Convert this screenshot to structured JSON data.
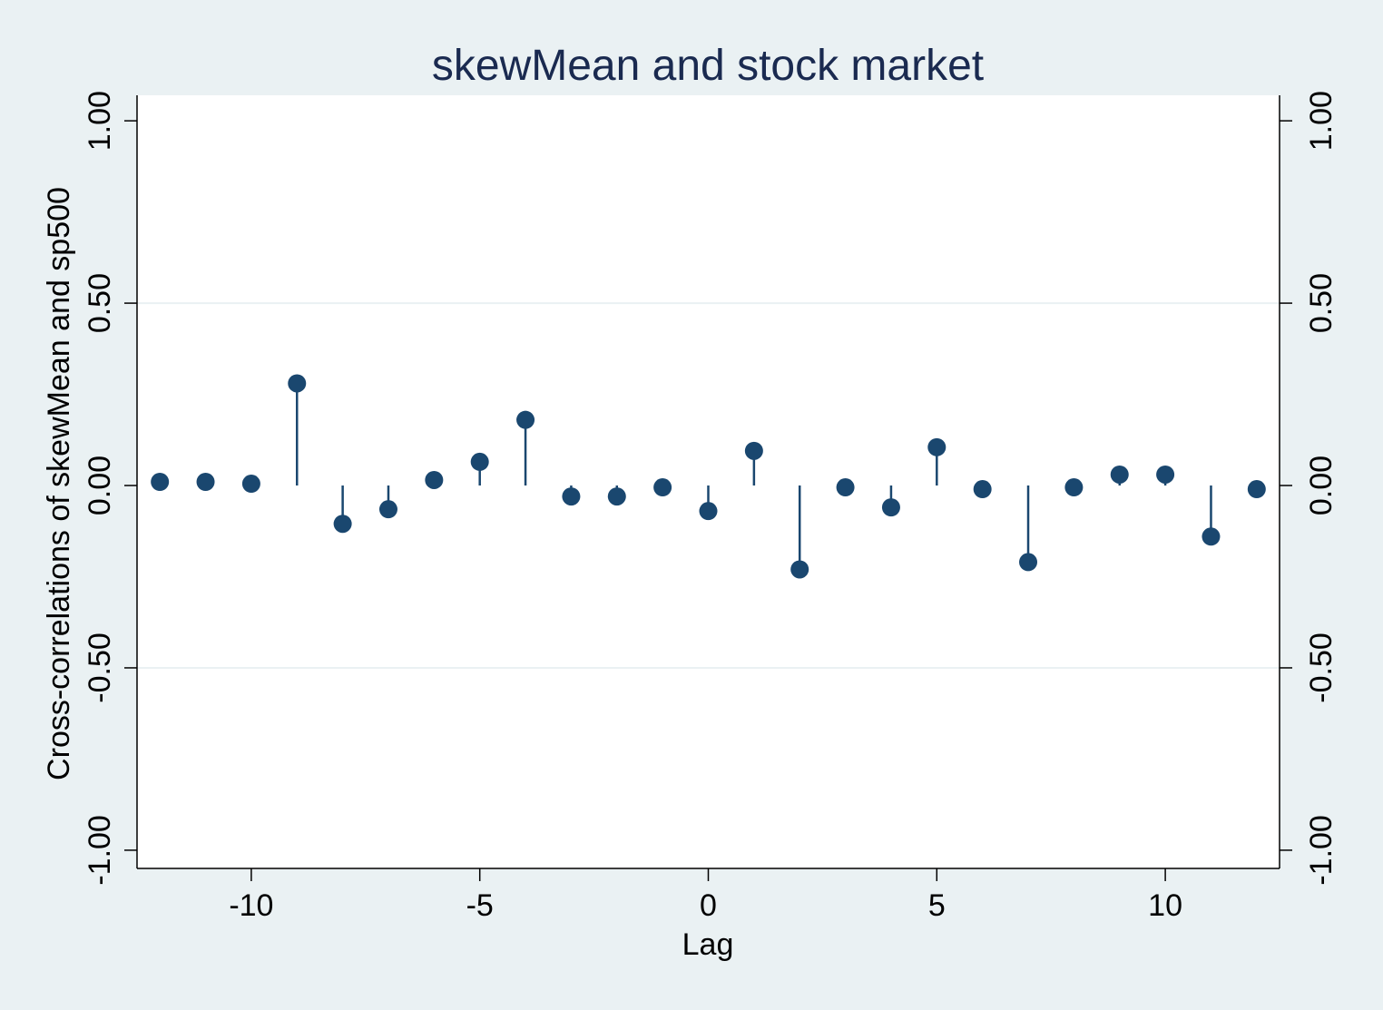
{
  "chart_data": {
    "type": "scatter",
    "title": "skewMean and stock market",
    "xlabel": "Lag",
    "ylabel": "Cross-correlations of skewMean and sp500",
    "xlim": [
      -12.5,
      12.5
    ],
    "ylim": [
      -1.05,
      1.07
    ],
    "x_ticks": [
      -10,
      -5,
      0,
      5,
      10
    ],
    "x_tick_labels": [
      "-10",
      "-5",
      "0",
      "5",
      "10"
    ],
    "y_ticks": [
      -1,
      -0.5,
      0,
      0.5,
      1
    ],
    "y_tick_labels": [
      "-1.00",
      "-0.50",
      "0.00",
      "0.50",
      "1.00"
    ],
    "grid": true,
    "right_axis": true,
    "style": "stem (dropline) plot",
    "colors": {
      "marker": "#1a476f",
      "title": "#1a2a50",
      "background": "#eaf1f3",
      "plot_area": "#ffffff",
      "grid": "#eaf1f3"
    },
    "x": [
      -12,
      -11,
      -10,
      -9,
      -8,
      -7,
      -6,
      -5,
      -4,
      -3,
      -2,
      -1,
      0,
      1,
      2,
      3,
      4,
      5,
      6,
      7,
      8,
      9,
      10,
      11,
      12
    ],
    "y": [
      0.01,
      0.01,
      0.005,
      0.28,
      -0.105,
      -0.065,
      0.015,
      0.065,
      0.18,
      -0.03,
      -0.03,
      -0.005,
      -0.07,
      0.095,
      -0.23,
      -0.005,
      -0.06,
      0.105,
      -0.01,
      -0.21,
      -0.005,
      0.03,
      0.03,
      -0.14,
      -0.01
    ]
  }
}
